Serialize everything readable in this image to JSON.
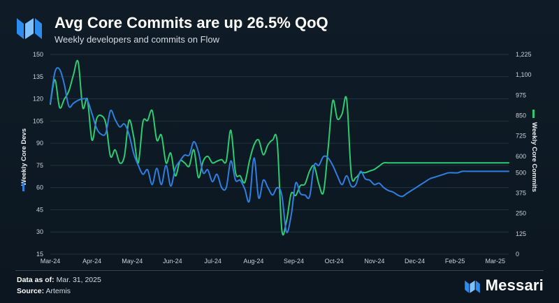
{
  "header": {
    "title": "Avg Core Commits are up 26.5% QoQ",
    "subtitle": "Weekly developers and commits on Flow"
  },
  "footer": {
    "data_as_of_label": "Data as of:",
    "data_as_of_value": "Mar. 31, 2025",
    "source_label": "Source:",
    "source_value": "Artemis"
  },
  "brand": {
    "name": "Messari"
  },
  "colors": {
    "devs": "#2f7fe0",
    "commits": "#2ecc71",
    "grid": "#223340",
    "brand": "#2d8cf0"
  },
  "chart_data": {
    "type": "line",
    "title": "Avg Core Commits are up 26.5% QoQ",
    "subtitle": "Weekly developers and commits on Flow",
    "x_tick_labels": [
      "Mar-24",
      "Apr-24",
      "May-24",
      "Jun-24",
      "Jul-24",
      "Aug-24",
      "Sep-24",
      "Oct-24",
      "Nov-24",
      "Dec-24",
      "Feb-25",
      "Mar-25"
    ],
    "x_tick_weeks": [
      0,
      9.0,
      17.7,
      26.4,
      35.1,
      43.9,
      52.6,
      61.3,
      70.0,
      78.7,
      87.4,
      96.1
    ],
    "left_axis": {
      "label": "Weekly Core Devs",
      "ylim": [
        15,
        150
      ],
      "ticks": [
        15,
        30,
        45,
        60,
        75,
        90,
        105,
        120,
        135,
        150
      ]
    },
    "right_axis": {
      "label": "Weekly Core Commits",
      "ylim": [
        0,
        1225
      ],
      "ticks": [
        0,
        125,
        250,
        375,
        500,
        600,
        725,
        850,
        975,
        1100,
        1225
      ],
      "tick_labels": [
        "0",
        "125",
        "250",
        "375",
        "500",
        "600",
        "725",
        "850",
        "975",
        "1,100",
        "1,225"
      ]
    },
    "series": [
      {
        "name": "Weekly Core Devs",
        "axis": "left",
        "color": "#2f7fe0",
        "x": [
          0,
          1,
          2,
          3,
          4,
          5,
          6,
          7,
          8,
          9,
          10,
          11,
          12,
          13,
          14,
          15,
          16,
          17,
          18,
          19,
          20,
          21,
          22,
          23,
          24,
          25,
          26,
          27,
          28,
          29,
          30,
          31,
          32,
          33,
          34,
          35,
          36,
          37,
          38,
          39,
          40,
          41,
          42,
          43,
          44,
          45,
          46,
          47,
          48,
          49,
          50,
          51,
          52,
          53,
          54,
          55,
          56,
          57,
          58,
          59,
          60,
          61,
          62,
          63,
          64,
          65,
          66,
          67,
          68,
          69,
          70,
          71,
          72,
          73,
          74,
          75,
          76,
          77,
          78,
          79,
          80,
          81,
          82,
          83,
          84,
          85,
          86,
          87,
          88,
          89,
          90,
          91,
          92,
          93,
          94,
          95,
          96,
          97,
          98,
          99
        ],
        "y": [
          117,
          138,
          140,
          130,
          115,
          117,
          119,
          120,
          119,
          110,
          100,
          96,
          97,
          112,
          106,
          101,
          103,
          96,
          83,
          75,
          69,
          72,
          62,
          73,
          62,
          75,
          61,
          73,
          78,
          82,
          82,
          91,
          84,
          70,
          72,
          64,
          69,
          60,
          60,
          78,
          65,
          65,
          59,
          51,
          80,
          53,
          65,
          60,
          55,
          60,
          55,
          30,
          41,
          63,
          56,
          55,
          54,
          75,
          75,
          81,
          80,
          75,
          68,
          62,
          68,
          61,
          62,
          71,
          66,
          65,
          62,
          63,
          60,
          58,
          57,
          55,
          54,
          56,
          58,
          60,
          62,
          64,
          66,
          67,
          68,
          69,
          70,
          70,
          70,
          71,
          71,
          71,
          71,
          71,
          71,
          71,
          71,
          71,
          71,
          71
        ]
      },
      {
        "name": "Weekly Core Commits",
        "axis": "right",
        "color": "#2ecc71",
        "x": [
          0,
          1,
          2,
          3,
          4,
          5,
          6,
          7,
          8,
          9,
          10,
          11,
          12,
          13,
          14,
          15,
          16,
          17,
          18,
          19,
          20,
          21,
          22,
          23,
          24,
          25,
          26,
          27,
          28,
          29,
          30,
          31,
          32,
          33,
          34,
          35,
          36,
          37,
          38,
          39,
          40,
          41,
          42,
          43,
          44,
          45,
          46,
          47,
          48,
          49,
          50,
          51,
          52,
          53,
          54,
          55,
          56,
          57,
          58,
          59,
          60,
          61,
          62,
          63,
          64,
          65,
          66,
          67,
          68,
          69,
          70,
          71,
          72,
          73,
          74,
          75,
          76,
          77,
          78,
          79,
          80,
          81,
          82,
          83,
          84,
          85,
          86,
          87,
          88,
          89,
          90,
          91,
          92,
          93,
          94,
          95,
          96,
          97,
          98,
          99
        ],
        "y": [
          920,
          1070,
          900,
          950,
          1000,
          1100,
          1180,
          900,
          950,
          700,
          830,
          850,
          800,
          600,
          640,
          560,
          600,
          820,
          720,
          560,
          810,
          820,
          880,
          700,
          730,
          560,
          620,
          480,
          570,
          560,
          540,
          640,
          470,
          570,
          600,
          560,
          570,
          580,
          570,
          760,
          500,
          480,
          440,
          570,
          670,
          700,
          610,
          670,
          700,
          690,
          150,
          200,
          370,
          360,
          420,
          430,
          510,
          540,
          430,
          380,
          650,
          940,
          830,
          860,
          950,
          490,
          470,
          500,
          500,
          510,
          520,
          540,
          560,
          560,
          560,
          560,
          560,
          560,
          560,
          560,
          560,
          560,
          560,
          560,
          560,
          560,
          560,
          560,
          560,
          560,
          560,
          560,
          560,
          560,
          560,
          560,
          560,
          560,
          560,
          560
        ]
      }
    ]
  }
}
